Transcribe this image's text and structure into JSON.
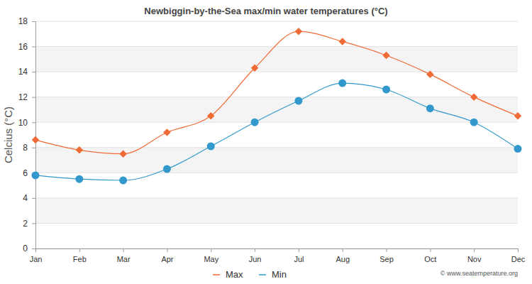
{
  "chart_data": {
    "type": "line",
    "title": "Newbiggin-by-the-Sea max/min water temperatures (°C)",
    "y_label": "Celcius (°C)",
    "annotations": [
      "© www.seatemperature.org"
    ],
    "categories": [
      "Jan",
      "Feb",
      "Mar",
      "Apr",
      "May",
      "Jun",
      "Jul",
      "Aug",
      "Sep",
      "Oct",
      "Nov",
      "Dec"
    ],
    "series": [
      {
        "name": "Max",
        "color": "#f06a35",
        "marker": "diamond",
        "values": [
          8.6,
          7.8,
          7.5,
          9.2,
          10.5,
          14.3,
          17.2,
          16.4,
          15.3,
          13.8,
          12.0,
          10.5
        ]
      },
      {
        "name": "Min",
        "color": "#3399cc",
        "marker": "circle",
        "values": [
          5.8,
          5.5,
          5.4,
          6.3,
          8.1,
          10.0,
          11.7,
          13.1,
          12.6,
          11.1,
          10.0,
          7.9
        ]
      }
    ],
    "ylim": [
      0,
      18
    ],
    "yticks": [
      0,
      2,
      4,
      6,
      8,
      10,
      12,
      14,
      16,
      18
    ],
    "grid": true,
    "legend": "bottom"
  }
}
